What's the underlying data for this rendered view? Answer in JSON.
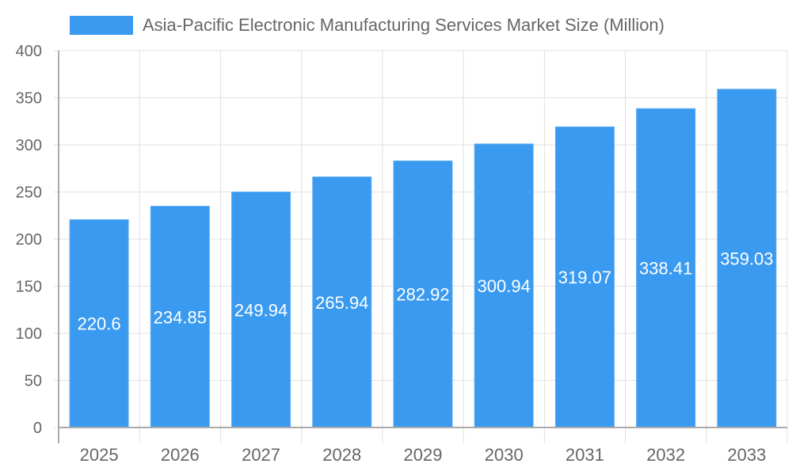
{
  "chart_data": {
    "type": "bar",
    "title": "",
    "legend": [
      "Asia-Pacific Electronic Manufacturing Services Market Size (Million)"
    ],
    "legend_position": "top",
    "xlabel": "",
    "ylabel": "",
    "categories": [
      "2025",
      "2026",
      "2027",
      "2028",
      "2029",
      "2030",
      "2031",
      "2032",
      "2033"
    ],
    "series": [
      {
        "name": "Asia-Pacific Electronic Manufacturing Services Market Size (Million)",
        "values": [
          220.6,
          234.85,
          249.94,
          265.94,
          282.92,
          300.94,
          319.07,
          338.41,
          359.03
        ],
        "labels": [
          "220.6",
          "234.85",
          "249.94",
          "265.94",
          "282.92",
          "300.94",
          "319.07",
          "338.41",
          "359.03"
        ],
        "color": "#3a9af0"
      }
    ],
    "ylim": [
      0,
      400
    ],
    "yticks": [
      "0",
      "50",
      "100",
      "150",
      "200",
      "250",
      "300",
      "350",
      "400"
    ],
    "grid": true
  },
  "colors": {
    "bar": "#3a9af0",
    "grid": "#e0e0e0",
    "axis": "#aaaaaa",
    "tick_text": "#666666",
    "bar_label": "#ffffff"
  }
}
